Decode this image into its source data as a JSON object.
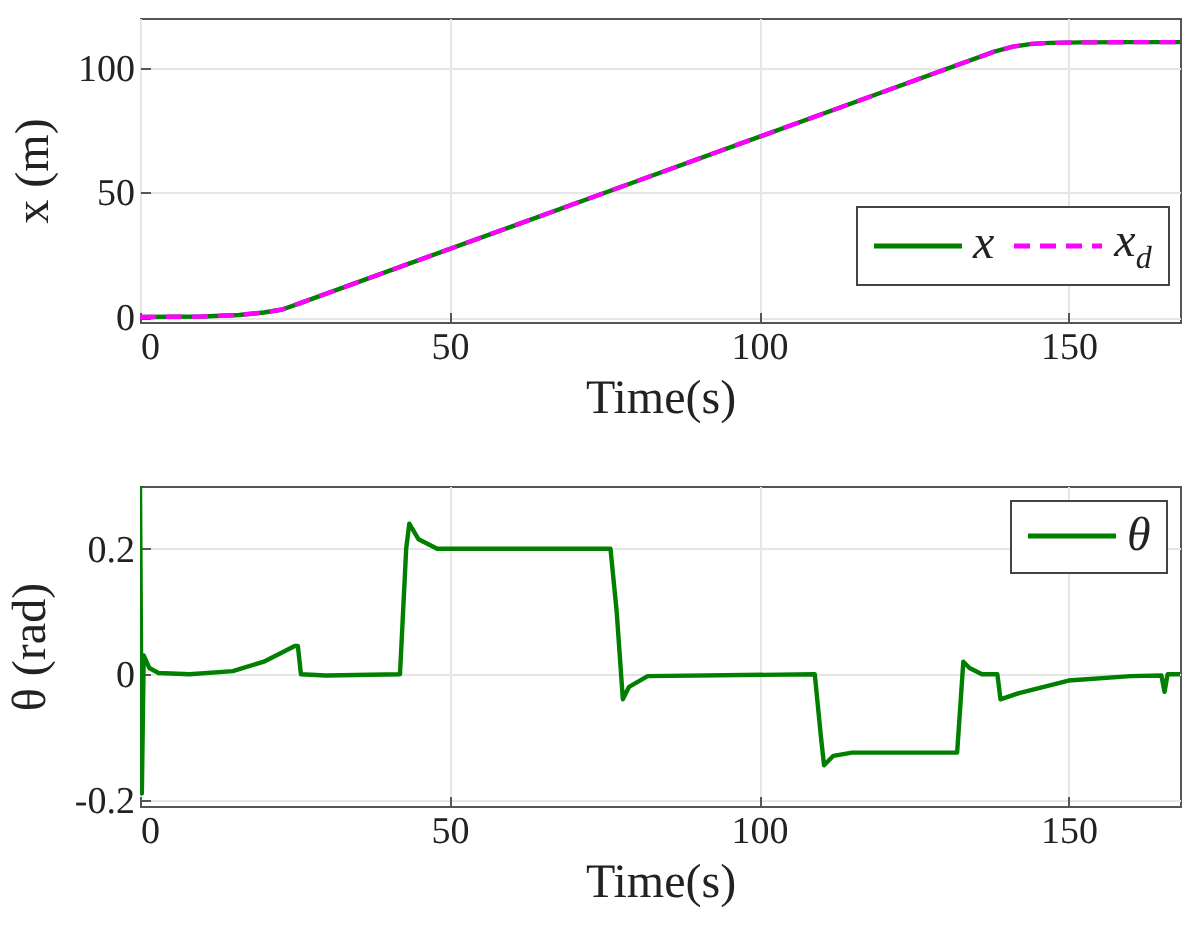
{
  "chart_data": [
    {
      "type": "line",
      "xlabel": "Time(s)",
      "ylabel": "x (m)",
      "x": [
        0,
        10,
        16,
        20,
        23,
        26,
        40,
        60,
        80,
        100,
        120,
        138,
        141,
        144,
        147,
        152,
        160,
        168
      ],
      "xlim": [
        0,
        168
      ],
      "xticks": [
        0,
        50,
        100,
        150
      ],
      "ylim": [
        -2,
        120
      ],
      "yticks": [
        0,
        50,
        100
      ],
      "grid": true,
      "legend": "bottom right",
      "series": [
        {
          "name": "x",
          "color": "#007f00",
          "line_style": "solid",
          "values": [
            0,
            0.2,
            0.8,
            1.8,
            3,
            5.7,
            18.3,
            36.3,
            54.3,
            72.3,
            90.3,
            106.5,
            108.5,
            109.6,
            110,
            110.2,
            110.3,
            110.3
          ]
        },
        {
          "name": "x$_{d}$",
          "color": "#ff00ff",
          "line_style": "dashed",
          "values": [
            0,
            0.2,
            0.8,
            1.8,
            3,
            5.7,
            18.3,
            36.3,
            54.3,
            72.3,
            90.3,
            106.5,
            108.5,
            109.6,
            110,
            110.2,
            110.3,
            110.3
          ]
        }
      ]
    },
    {
      "type": "line",
      "xlabel": "Time(s)",
      "ylabel": "θ (rad)",
      "x": [
        0,
        0.3,
        0.6,
        1.5,
        3,
        8,
        15,
        20,
        25,
        25.5,
        26,
        30,
        42,
        43,
        43.5,
        45,
        48,
        76,
        77,
        78,
        79,
        82,
        109,
        110,
        110.5,
        112,
        115,
        132,
        133,
        134,
        136,
        138.5,
        139,
        142,
        150,
        160,
        165,
        165.5,
        166,
        168
      ],
      "xlim": [
        0,
        168
      ],
      "xticks": [
        0,
        50,
        100,
        150
      ],
      "ylim": [
        -0.21,
        0.3
      ],
      "yticks": [
        -0.2,
        0,
        0.2
      ],
      "grid": true,
      "legend": "top right",
      "series": [
        {
          "name": "θ",
          "color": "#007f00",
          "line_style": "solid",
          "values": [
            0.3,
            -0.19,
            0.03,
            0.01,
            0.002,
            0,
            0.005,
            0.02,
            0.045,
            0.045,
            0,
            -0.002,
            0,
            0.2,
            0.24,
            0.215,
            0.2,
            0.2,
            0.1,
            -0.04,
            -0.02,
            -0.003,
            0,
            -0.1,
            -0.145,
            -0.13,
            -0.125,
            -0.125,
            0.02,
            0.01,
            0,
            0,
            -0.04,
            -0.03,
            -0.01,
            -0.003,
            -0.002,
            -0.028,
            0,
            0
          ]
        }
      ]
    }
  ]
}
